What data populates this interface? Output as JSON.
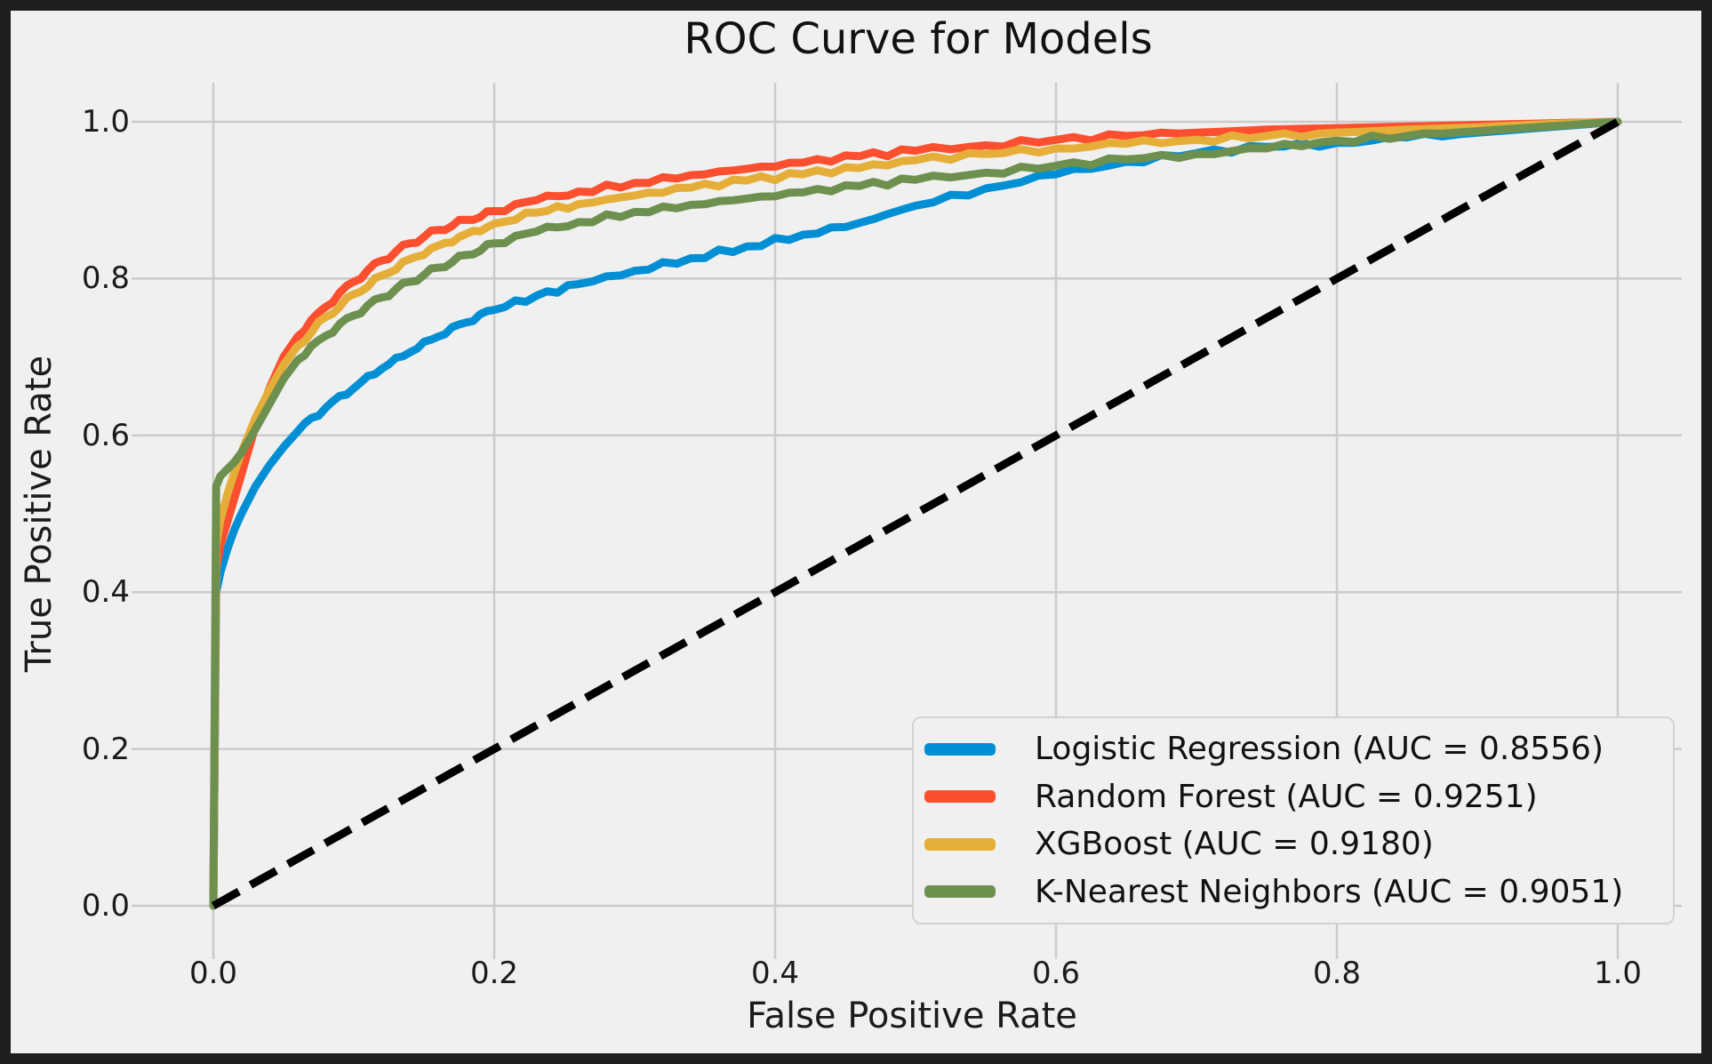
{
  "figure": {
    "frame_color": "#1e1e1e",
    "background": "#f0f0f0",
    "grid_color": "#cbcbcb",
    "text_color": "#1b1b1b"
  },
  "chart_data": {
    "type": "line",
    "title": "ROC Curve for Models",
    "xlabel": "False Positive Rate",
    "ylabel": "True Positive Rate",
    "xlim": [
      0.0,
      1.0
    ],
    "ylim": [
      0.0,
      1.0
    ],
    "x_ticks": [
      0.0,
      0.2,
      0.4,
      0.6,
      0.8,
      1.0
    ],
    "y_ticks": [
      0.0,
      0.2,
      0.4,
      0.6,
      0.8,
      1.0
    ],
    "x_tick_labels": [
      "0.0",
      "0.2",
      "0.4",
      "0.6",
      "0.8",
      "1.0"
    ],
    "y_tick_labels": [
      "0.0",
      "0.2",
      "0.4",
      "0.6",
      "0.8",
      "1.0"
    ],
    "grid": true,
    "legend_position": "lower right",
    "series": [
      {
        "name": "Logistic Regression",
        "auc": 0.8556,
        "label": "Logistic Regression (AUC = 0.8556)",
        "color": "#008fd5",
        "fpr": [
          0,
          0.002,
          0.005,
          0.01,
          0.015,
          0.02,
          0.03,
          0.04,
          0.05,
          0.06,
          0.08,
          0.1,
          0.12,
          0.14,
          0.16,
          0.18,
          0.2,
          0.23,
          0.26,
          0.3,
          0.34,
          0.38,
          0.42,
          0.46,
          0.5,
          0.55,
          0.6,
          0.65,
          0.7,
          0.75,
          0.8,
          0.85,
          0.9,
          0.95,
          1
        ],
        "tpr": [
          0,
          0.4,
          0.425,
          0.455,
          0.48,
          0.5,
          0.535,
          0.562,
          0.585,
          0.605,
          0.635,
          0.66,
          0.685,
          0.706,
          0.726,
          0.744,
          0.76,
          0.778,
          0.793,
          0.81,
          0.826,
          0.841,
          0.856,
          0.871,
          0.893,
          0.915,
          0.933,
          0.949,
          0.96,
          0.968,
          0.973,
          0.98,
          0.986,
          0.993,
          1
        ]
      },
      {
        "name": "Random Forest",
        "auc": 0.9251,
        "label": "Random Forest (AUC = 0.9251)",
        "color": "#fc4f30",
        "fpr": [
          0,
          0.002,
          0.005,
          0.01,
          0.015,
          0.02,
          0.03,
          0.04,
          0.05,
          0.06,
          0.08,
          0.1,
          0.12,
          0.14,
          0.16,
          0.18,
          0.2,
          0.23,
          0.26,
          0.3,
          0.34,
          0.38,
          0.42,
          0.46,
          0.5,
          0.55,
          0.6,
          0.65,
          0.7,
          0.75,
          0.8,
          0.85,
          0.9,
          0.95,
          1
        ],
        "tpr": [
          0,
          0.43,
          0.46,
          0.49,
          0.52,
          0.55,
          0.612,
          0.66,
          0.7,
          0.726,
          0.764,
          0.796,
          0.823,
          0.845,
          0.862,
          0.875,
          0.886,
          0.9,
          0.911,
          0.922,
          0.932,
          0.94,
          0.948,
          0.956,
          0.963,
          0.97,
          0.977,
          0.982,
          0.986,
          0.99,
          0.992,
          0.994,
          0.996,
          0.998,
          1
        ]
      },
      {
        "name": "XGBoost",
        "auc": 0.918,
        "label": "XGBoost (AUC = 0.9180)",
        "color": "#e5ae38",
        "fpr": [
          0,
          0.002,
          0.005,
          0.01,
          0.015,
          0.02,
          0.03,
          0.04,
          0.05,
          0.06,
          0.08,
          0.1,
          0.12,
          0.14,
          0.16,
          0.18,
          0.2,
          0.23,
          0.26,
          0.3,
          0.34,
          0.38,
          0.42,
          0.46,
          0.5,
          0.55,
          0.6,
          0.65,
          0.7,
          0.75,
          0.8,
          0.85,
          0.9,
          0.95,
          1
        ],
        "tpr": [
          0,
          0.46,
          0.492,
          0.525,
          0.553,
          0.578,
          0.622,
          0.658,
          0.69,
          0.714,
          0.751,
          0.78,
          0.804,
          0.825,
          0.842,
          0.857,
          0.87,
          0.884,
          0.895,
          0.906,
          0.916,
          0.925,
          0.933,
          0.941,
          0.951,
          0.959,
          0.966,
          0.972,
          0.977,
          0.982,
          0.986,
          0.99,
          0.993,
          0.997,
          1
        ]
      },
      {
        "name": "K-Nearest Neighbors",
        "auc": 0.9051,
        "label": "K-Nearest Neighbors (AUC = 0.9051)",
        "color": "#6d904f",
        "fpr": [
          0,
          0.002,
          0.005,
          0.01,
          0.015,
          0.02,
          0.03,
          0.04,
          0.05,
          0.06,
          0.08,
          0.1,
          0.12,
          0.14,
          0.16,
          0.18,
          0.2,
          0.23,
          0.26,
          0.3,
          0.34,
          0.38,
          0.42,
          0.46,
          0.5,
          0.55,
          0.6,
          0.65,
          0.7,
          0.75,
          0.8,
          0.85,
          0.9,
          0.95,
          1
        ],
        "tpr": [
          0,
          0.535,
          0.548,
          0.557,
          0.566,
          0.578,
          0.608,
          0.64,
          0.672,
          0.696,
          0.727,
          0.753,
          0.776,
          0.796,
          0.814,
          0.83,
          0.845,
          0.86,
          0.872,
          0.885,
          0.894,
          0.902,
          0.91,
          0.918,
          0.926,
          0.935,
          0.944,
          0.952,
          0.959,
          0.966,
          0.976,
          0.982,
          0.988,
          0.994,
          1
        ]
      }
    ],
    "reference_line": {
      "name": "chance-diagonal",
      "from": [
        0,
        0
      ],
      "to": [
        1,
        1
      ],
      "color": "#000000",
      "style": "dashed"
    }
  }
}
